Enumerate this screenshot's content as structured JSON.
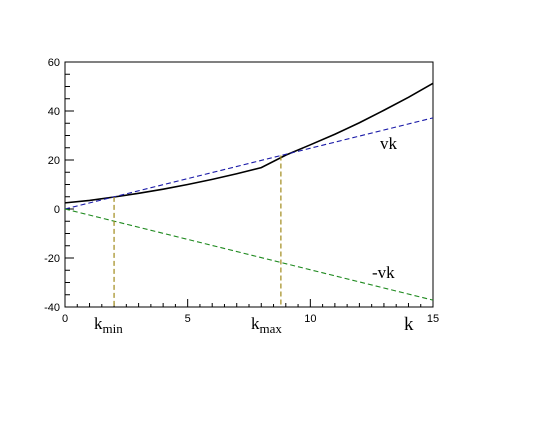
{
  "chart_data": {
    "type": "line",
    "xlim": [
      0,
      15
    ],
    "ylim": [
      -40,
      60
    ],
    "x_ticks": [
      0,
      5,
      10,
      15
    ],
    "y_ticks": [
      -40,
      -20,
      0,
      20,
      40,
      60
    ],
    "xlabel": "k",
    "grid": false,
    "series": [
      {
        "x": [
          0,
          1,
          2,
          3,
          4,
          5,
          6,
          7,
          8,
          9,
          10,
          11,
          12,
          13,
          14,
          15
        ],
        "y": [
          2.5,
          3.5,
          4.9,
          6.4,
          8.1,
          10.0,
          12.1,
          14.4,
          16.9,
          22.0,
          26.2,
          30.5,
          35.2,
          40.3,
          45.6,
          51.3
        ],
        "color": "#000000",
        "style": "solid"
      },
      {
        "name": "vk",
        "x": [
          0,
          15
        ],
        "y": [
          0,
          37.2
        ],
        "color": "#1a1aa8",
        "style": "dashed"
      },
      {
        "name": "-vk",
        "x": [
          0,
          15
        ],
        "y": [
          0,
          -37.2
        ],
        "color": "#1f8a1f",
        "style": "dashed"
      }
    ],
    "annotations": {
      "vk_label": "vk",
      "neg_vk_label": "-vk",
      "kmin": {
        "base": "k",
        "sub": "min",
        "x": 2.0
      },
      "kmax": {
        "base": "k",
        "sub": "max",
        "x": 8.8
      }
    },
    "vertical_lines_color": "#a08a1a"
  }
}
